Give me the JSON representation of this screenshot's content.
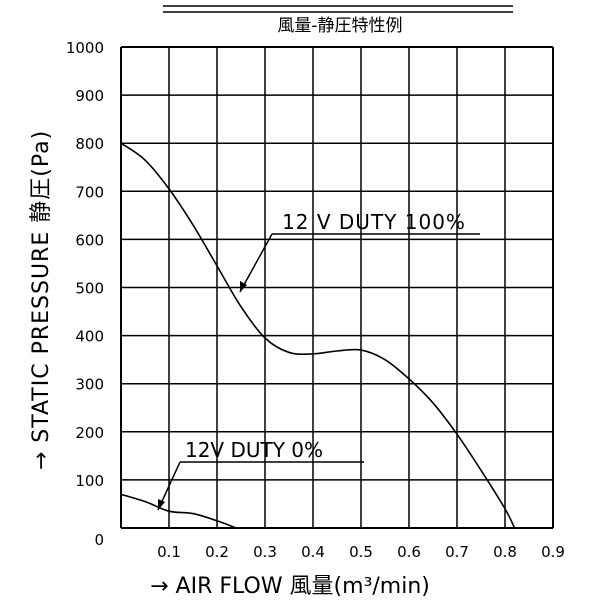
{
  "chart_data": {
    "type": "line",
    "title": "風量-静圧特性例",
    "xlabel": "→ AIR FLOW 風量(m³/min)",
    "ylabel": "→ STATIC PRESSURE 静圧(Pa)",
    "xlim": [
      0,
      0.9
    ],
    "ylim": [
      0,
      1000
    ],
    "x_ticks": [
      "0.1",
      "0.2",
      "0.3",
      "0.4",
      "0.5",
      "0.6",
      "0.7",
      "0.8",
      "0.9"
    ],
    "y_ticks": [
      "0",
      "100",
      "200",
      "300",
      "400",
      "500",
      "600",
      "700",
      "800",
      "900",
      "1000"
    ],
    "grid": true,
    "series": [
      {
        "name": "12 V DUTY 100%",
        "points": [
          [
            0,
            800
          ],
          [
            0.05,
            765
          ],
          [
            0.1,
            705
          ],
          [
            0.15,
            630
          ],
          [
            0.2,
            545
          ],
          [
            0.25,
            460
          ],
          [
            0.3,
            395
          ],
          [
            0.35,
            365
          ],
          [
            0.4,
            362
          ],
          [
            0.45,
            368
          ],
          [
            0.5,
            370
          ],
          [
            0.55,
            350
          ],
          [
            0.6,
            310
          ],
          [
            0.65,
            260
          ],
          [
            0.7,
            195
          ],
          [
            0.75,
            120
          ],
          [
            0.8,
            40
          ],
          [
            0.82,
            0
          ]
        ]
      },
      {
        "name": "12V DUTY 0%",
        "points": [
          [
            0,
            70
          ],
          [
            0.05,
            55
          ],
          [
            0.1,
            35
          ],
          [
            0.15,
            30
          ],
          [
            0.2,
            15
          ],
          [
            0.24,
            0
          ]
        ]
      }
    ]
  }
}
